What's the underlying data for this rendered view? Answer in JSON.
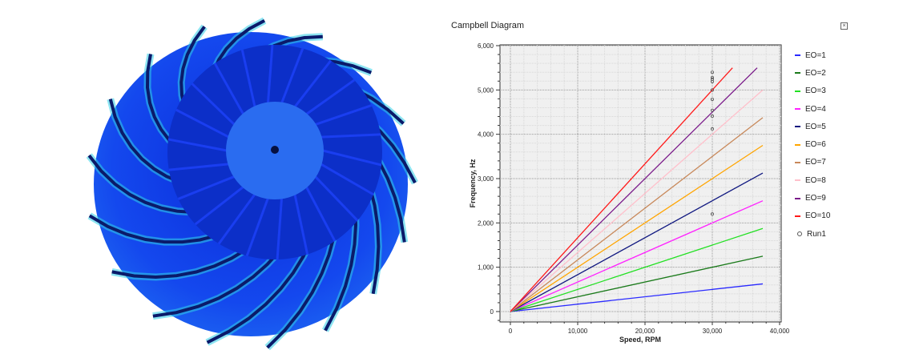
{
  "image": {
    "subject": "impeller-render",
    "colors": {
      "base": "#1030e0",
      "light": "#2a6cf0",
      "highlight": "#30d0e8",
      "dark": "#0a1a6a"
    }
  },
  "window": {
    "title": "Campbell Diagram",
    "close_icon": "close-box-icon"
  },
  "chart_data": {
    "type": "line",
    "title": "Campbell Diagram",
    "xlabel": "Speed, RPM",
    "ylabel": "Frequency, Hz",
    "xlim": [
      -1500,
      40000
    ],
    "ylim": [
      -230,
      6000
    ],
    "xticks": [
      "0",
      "10,000",
      "20,000",
      "30,000",
      "40,000"
    ],
    "xtick_values": [
      0,
      10000,
      20000,
      30000,
      40000
    ],
    "yticks": [
      "0",
      "1,000",
      "2,000",
      "3,000",
      "4,000",
      "5,000",
      "6,000"
    ],
    "ytick_values": [
      0,
      1000,
      2000,
      3000,
      4000,
      5000,
      6000
    ],
    "grid": true,
    "legend_position": "right",
    "series": [
      {
        "name": "EO=1",
        "color": "#2a2aff",
        "x": [
          0,
          37500
        ],
        "y": [
          0,
          625
        ]
      },
      {
        "name": "EO=2",
        "color": "#1a7a1a",
        "x": [
          0,
          37500
        ],
        "y": [
          0,
          1250
        ]
      },
      {
        "name": "EO=3",
        "color": "#22e022",
        "x": [
          0,
          37500
        ],
        "y": [
          0,
          1875
        ]
      },
      {
        "name": "EO=4",
        "color": "#ff22ff",
        "x": [
          0,
          37500
        ],
        "y": [
          0,
          2500
        ]
      },
      {
        "name": "EO=5",
        "color": "#101880",
        "x": [
          0,
          37500
        ],
        "y": [
          0,
          3125
        ]
      },
      {
        "name": "EO=6",
        "color": "#ffa500",
        "x": [
          0,
          37500
        ],
        "y": [
          0,
          3750
        ]
      },
      {
        "name": "EO=7",
        "color": "#c8885a",
        "x": [
          0,
          37500
        ],
        "y": [
          0,
          4375
        ]
      },
      {
        "name": "EO=8",
        "color": "#ffc0cb",
        "x": [
          0,
          37500
        ],
        "y": [
          0,
          5000
        ]
      },
      {
        "name": "EO=9",
        "color": "#7a1a8a",
        "x": [
          0,
          36667
        ],
        "y": [
          0,
          5500
        ]
      },
      {
        "name": "EO=10",
        "color": "#ff1a1a",
        "x": [
          0,
          33000
        ],
        "y": [
          0,
          5500
        ]
      },
      {
        "name": "Run1",
        "marker": "circle",
        "color": "#555555",
        "x": [
          30000,
          30000,
          30000,
          30000,
          30000,
          30000,
          30000,
          30000,
          30000,
          30000
        ],
        "y": [
          5400,
          5280,
          5240,
          5190,
          5000,
          4790,
          4540,
          4410,
          4120,
          2200
        ]
      }
    ]
  }
}
